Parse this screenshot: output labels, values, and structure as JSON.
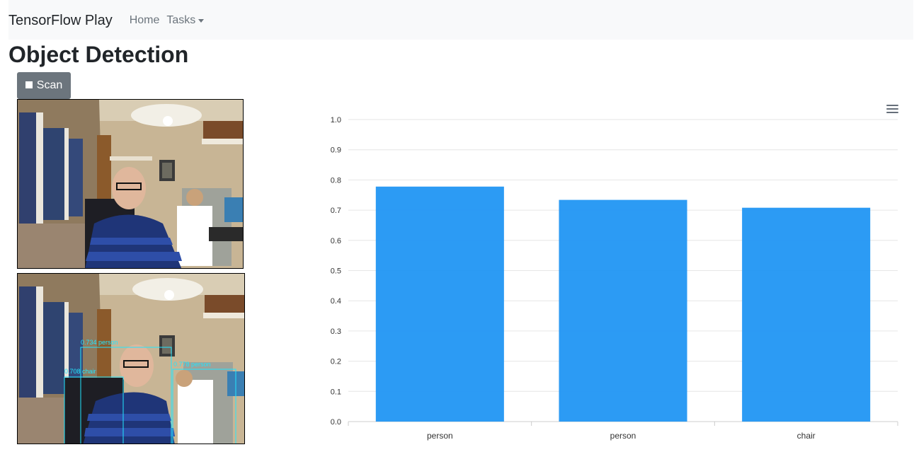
{
  "navbar": {
    "brand": "TensorFlow Play",
    "links": [
      {
        "label": "Home"
      },
      {
        "label": "Tasks"
      }
    ]
  },
  "page": {
    "title": "Object Detection",
    "scan_label": "Scan",
    "scan_icon": "stop-icon"
  },
  "detections": [
    {
      "label": "0.734 person",
      "color": "#21e6ff"
    },
    {
      "label": "0.708 chair",
      "color": "#21e6ff"
    },
    {
      "label": "0.778 person",
      "color": "#21e6ff"
    }
  ],
  "chart_data": {
    "type": "bar",
    "categories": [
      "person",
      "person",
      "chair"
    ],
    "values": [
      0.778,
      0.734,
      0.708
    ],
    "ylim": [
      0,
      1
    ],
    "yticks": [
      0.0,
      0.1,
      0.2,
      0.3,
      0.4,
      0.5,
      0.6,
      0.7,
      0.8,
      0.9,
      1.0
    ],
    "grid": true,
    "bar_color": "#2196f3",
    "legend": "none",
    "menu_icon": "hamburger-menu-icon"
  }
}
